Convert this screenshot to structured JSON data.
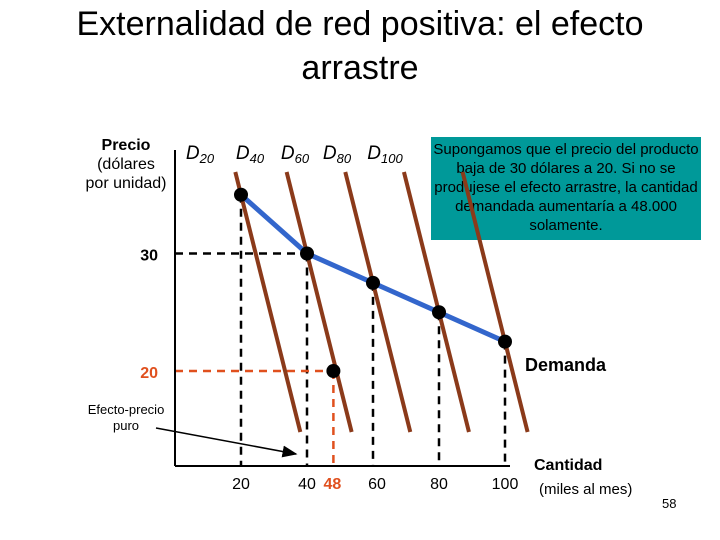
{
  "title": "Externalidad de red positiva: el efecto arrastre",
  "y_axis": {
    "label": "Precio",
    "sublabel_1": "(dólares",
    "sublabel_2": "por unidad)"
  },
  "x_axis": {
    "label": "Cantidad",
    "sublabel": "(miles al mes)"
  },
  "callout": "Supongamos que el precio del producto baja de 30 dólares a 20. Si no se produjese el efecto arrastre, la cantidad demandada aumentaría a 48.000 solamente.",
  "efecto_label": {
    "line1": "Efecto-precio",
    "line2": "puro"
  },
  "page_number": "58",
  "colors": {
    "demand": "#3366cc",
    "curves": "#8b3a1a",
    "callout_bg": "#009999",
    "highlight": "#e0501e",
    "point": "#000000"
  },
  "chart_data": {
    "type": "line",
    "x_ticks": [
      {
        "value": 20,
        "label": "20"
      },
      {
        "value": 40,
        "label": "40"
      },
      {
        "value": 48,
        "label": "48",
        "highlight": true
      },
      {
        "value": 60,
        "label": "60"
      },
      {
        "value": 80,
        "label": "80"
      },
      {
        "value": 100,
        "label": "100"
      }
    ],
    "y_ticks": [
      {
        "value": 30,
        "label": "30"
      },
      {
        "value": 20,
        "label": "20",
        "highlight": true
      }
    ],
    "demand_curves": [
      {
        "base": "D",
        "sub": "20",
        "point": {
          "x": 20,
          "y": 35
        }
      },
      {
        "base": "D",
        "sub": "40",
        "point": {
          "x": 40,
          "y": 30
        }
      },
      {
        "base": "D",
        "sub": "60",
        "point": {
          "x": 60,
          "y": 27.5
        }
      },
      {
        "base": "D",
        "sub": "80",
        "point": {
          "x": 80,
          "y": 25
        }
      },
      {
        "base": "D",
        "sub": "100",
        "point": {
          "x": 100,
          "y": 22.5
        }
      }
    ],
    "market_demand": {
      "label": "Demanda",
      "points": [
        {
          "x": 20,
          "y": 35
        },
        {
          "x": 40,
          "y": 30
        },
        {
          "x": 60,
          "y": 27.5
        },
        {
          "x": 80,
          "y": 25
        },
        {
          "x": 100,
          "y": 22.5
        }
      ]
    },
    "pure_price_effect_point": {
      "x": 48,
      "y": 20
    }
  }
}
